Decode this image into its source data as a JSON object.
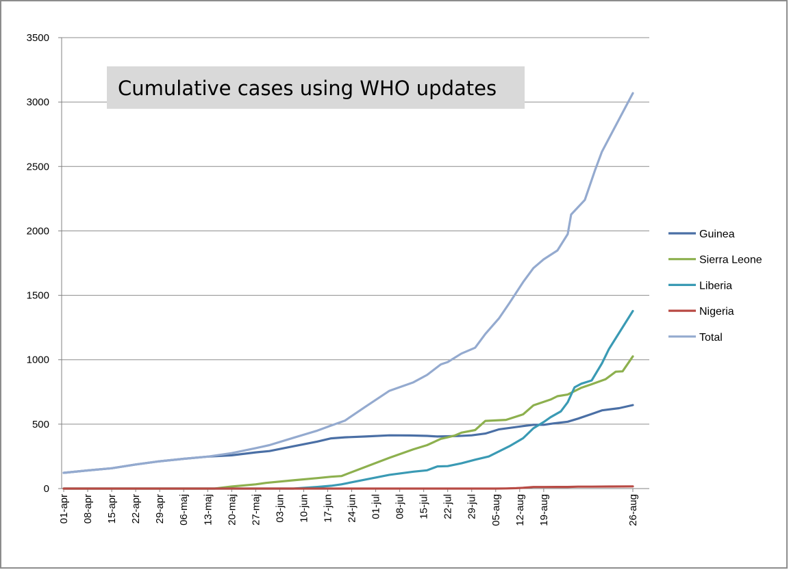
{
  "chart_data": {
    "type": "line",
    "title": "Cumulative cases using WHO updates",
    "xlabel": "",
    "ylabel": "",
    "ylim": [
      0,
      3500
    ],
    "yticks": [
      "0",
      "500",
      "1000",
      "1500",
      "2000",
      "2500",
      "3000",
      "3500"
    ],
    "x_tick_labels": [
      "01-apr",
      "08-apr",
      "15-apr",
      "22-apr",
      "29-apr",
      "06-maj",
      "13-maj",
      "20-maj",
      "27-maj",
      "03-jun",
      "10-jun",
      "17-jun",
      "24-jun",
      "01-jul",
      "08-jul",
      "15-jul",
      "22-jul",
      "29-jul",
      "05-aug",
      "12-aug",
      "19-aug",
      "26-aug"
    ],
    "x_range_days": [
      0,
      147
    ],
    "grid": true,
    "legend_position": "right",
    "series": [
      {
        "name": "Guinea",
        "color": "#4a6fa5",
        "points": [
          [
            0,
            122
          ],
          [
            7,
            141
          ],
          [
            14,
            158
          ],
          [
            21,
            187
          ],
          [
            28,
            212
          ],
          [
            35,
            231
          ],
          [
            42,
            248
          ],
          [
            49,
            258
          ],
          [
            56,
            281
          ],
          [
            60,
            291
          ],
          [
            67,
            328
          ],
          [
            74,
            365
          ],
          [
            78,
            390
          ],
          [
            82,
            398
          ],
          [
            88,
            404
          ],
          [
            95,
            413
          ],
          [
            101,
            412
          ],
          [
            106,
            409
          ],
          [
            109,
            404
          ],
          [
            115,
            408
          ],
          [
            119,
            413
          ],
          [
            123,
            427
          ],
          [
            127,
            460
          ],
          [
            134,
            485
          ],
          [
            137,
            495
          ],
          [
            140,
            495
          ],
          [
            143,
            506
          ],
          [
            147,
            519
          ],
          [
            150,
            543
          ],
          [
            154,
            579
          ],
          [
            157,
            607
          ],
          [
            162,
            624
          ],
          [
            166,
            648
          ]
        ]
      },
      {
        "name": "Sierra Leone",
        "color": "#8db04e",
        "points": [
          [
            0,
            0
          ],
          [
            44,
            0
          ],
          [
            49,
            16
          ],
          [
            56,
            33
          ],
          [
            59,
            44
          ],
          [
            67,
            64
          ],
          [
            74,
            81
          ],
          [
            78,
            92
          ],
          [
            81,
            97
          ],
          [
            95,
            239
          ],
          [
            102,
            305
          ],
          [
            106,
            337
          ],
          [
            110,
            386
          ],
          [
            112,
            398
          ],
          [
            114,
            411
          ],
          [
            116,
            434
          ],
          [
            120,
            454
          ],
          [
            123,
            525
          ],
          [
            126,
            529
          ],
          [
            129,
            533
          ],
          [
            134,
            576
          ],
          [
            137,
            646
          ],
          [
            142,
            691
          ],
          [
            144,
            717
          ],
          [
            147,
            730
          ],
          [
            151,
            783
          ],
          [
            154,
            810
          ],
          [
            158,
            848
          ],
          [
            161,
            907
          ],
          [
            163,
            910
          ],
          [
            166,
            1026
          ]
        ]
      },
      {
        "name": "Liberia",
        "color": "#3a9ab4",
        "points": [
          [
            0,
            0
          ],
          [
            67,
            0
          ],
          [
            74,
            13
          ],
          [
            78,
            22
          ],
          [
            81,
            33
          ],
          [
            95,
            107
          ],
          [
            102,
            131
          ],
          [
            106,
            142
          ],
          [
            109,
            172
          ],
          [
            112,
            174
          ],
          [
            116,
            196
          ],
          [
            120,
            224
          ],
          [
            124,
            249
          ],
          [
            130,
            329
          ],
          [
            134,
            391
          ],
          [
            137,
            468
          ],
          [
            140,
            516
          ],
          [
            142,
            554
          ],
          [
            145,
            599
          ],
          [
            147,
            670
          ],
          [
            149,
            786
          ],
          [
            151,
            814
          ],
          [
            154,
            839
          ],
          [
            157,
            972
          ],
          [
            159,
            1082
          ],
          [
            166,
            1378
          ]
        ]
      },
      {
        "name": "Nigeria",
        "color": "#b84a44",
        "points": [
          [
            0,
            0
          ],
          [
            118,
            0
          ],
          [
            123,
            0
          ],
          [
            126,
            0
          ],
          [
            129,
            1
          ],
          [
            132,
            3
          ],
          [
            134,
            6
          ],
          [
            137,
            12
          ],
          [
            140,
            12
          ],
          [
            144,
            13
          ],
          [
            147,
            13
          ],
          [
            150,
            15
          ],
          [
            154,
            15
          ],
          [
            160,
            16
          ],
          [
            166,
            17
          ]
        ]
      },
      {
        "name": "Total",
        "color": "#94aacf",
        "points": [
          [
            0,
            122
          ],
          [
            7,
            141
          ],
          [
            14,
            158
          ],
          [
            21,
            187
          ],
          [
            28,
            212
          ],
          [
            35,
            231
          ],
          [
            42,
            248
          ],
          [
            49,
            275
          ],
          [
            56,
            314
          ],
          [
            60,
            337
          ],
          [
            67,
            394
          ],
          [
            74,
            450
          ],
          [
            78,
            489
          ],
          [
            82,
            527
          ],
          [
            88,
            635
          ],
          [
            95,
            759
          ],
          [
            102,
            825
          ],
          [
            106,
            882
          ],
          [
            110,
            964
          ],
          [
            112,
            982
          ],
          [
            116,
            1048
          ],
          [
            120,
            1093
          ],
          [
            123,
            1201
          ],
          [
            127,
            1323
          ],
          [
            130,
            1440
          ],
          [
            134,
            1603
          ],
          [
            137,
            1711
          ],
          [
            140,
            1779
          ],
          [
            144,
            1848
          ],
          [
            147,
            1975
          ],
          [
            148,
            2127
          ],
          [
            152,
            2240
          ],
          [
            155,
            2473
          ],
          [
            157,
            2615
          ],
          [
            166,
            3069
          ]
        ]
      }
    ]
  }
}
